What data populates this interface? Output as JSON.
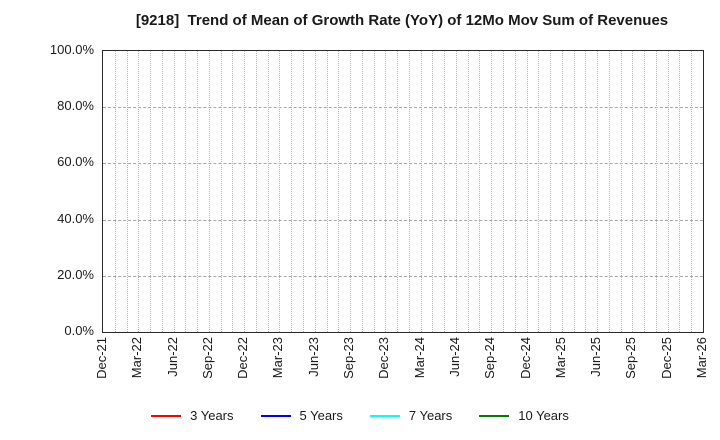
{
  "chart_data": {
    "type": "line",
    "title": "[9218]  Trend of Mean of Growth Rate (YoY) of 12Mo Mov Sum of Revenues",
    "categories": [
      "Dec-21",
      "Mar-22",
      "Jun-22",
      "Sep-22",
      "Dec-22",
      "Mar-23",
      "Jun-23",
      "Sep-23",
      "Dec-23",
      "Mar-24",
      "Jun-24",
      "Sep-24",
      "Dec-24",
      "Mar-25",
      "Jun-25",
      "Sep-25",
      "Dec-25",
      "Mar-26"
    ],
    "minor_x_divisions_per_category": 3,
    "series": [
      {
        "name": "3 Years",
        "color": "#ff0000",
        "values": []
      },
      {
        "name": "5 Years",
        "color": "#0000ff",
        "values": []
      },
      {
        "name": "7 Years",
        "color": "#00ffff",
        "values": []
      },
      {
        "name": "10 Years",
        "color": "#008000",
        "values": []
      }
    ],
    "ylim": [
      0,
      100
    ],
    "yticks": [
      {
        "value": 100,
        "label": "100.0%"
      },
      {
        "value": 80,
        "label": "80.0%"
      },
      {
        "value": 60,
        "label": "60.0%"
      },
      {
        "value": 40,
        "label": "40.0%"
      },
      {
        "value": 20,
        "label": "20.0%"
      },
      {
        "value": 0,
        "label": "0.0%"
      }
    ],
    "grid": true,
    "legend_position": "bottom",
    "no_data_plotted": true
  },
  "colors": {
    "background": "#ffffff",
    "text": "#1a1a1a",
    "frame": "#2a2a2a",
    "vgrid": "#b5b5b5",
    "hgrid": "#a8a8a8"
  }
}
